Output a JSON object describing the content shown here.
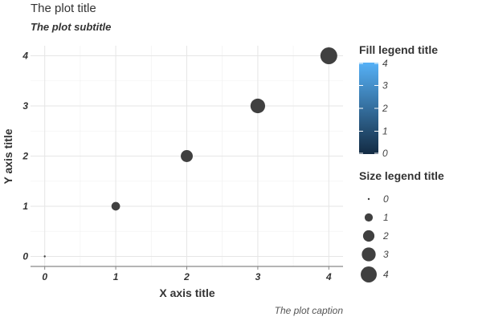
{
  "chart_data": {
    "type": "scatter",
    "title": "The plot title",
    "subtitle": "The plot subtitle",
    "caption": "The plot caption",
    "xlabel": "X axis title",
    "ylabel": "Y axis title",
    "x": [
      0,
      1,
      2,
      3,
      4
    ],
    "y": [
      0,
      1,
      2,
      3,
      4
    ],
    "size": [
      0,
      1,
      2,
      3,
      4
    ],
    "xlim": [
      -0.2,
      4.2
    ],
    "ylim": [
      -0.2,
      4.2
    ],
    "x_ticks": [
      "0",
      "1",
      "2",
      "3",
      "4"
    ],
    "y_ticks": [
      "0",
      "1",
      "2",
      "3",
      "4"
    ],
    "grid": true,
    "point_color": "#404040",
    "legend_placement": "right",
    "fill_legend": {
      "title": "Fill legend title",
      "range": [
        0,
        4
      ],
      "ticks": [
        "0",
        "1",
        "2",
        "3",
        "4"
      ],
      "low_color": "#132b43",
      "high_color": "#56b1f7"
    },
    "size_legend": {
      "title": "Size legend title",
      "values": [
        "0",
        "1",
        "2",
        "3",
        "4"
      ]
    }
  }
}
